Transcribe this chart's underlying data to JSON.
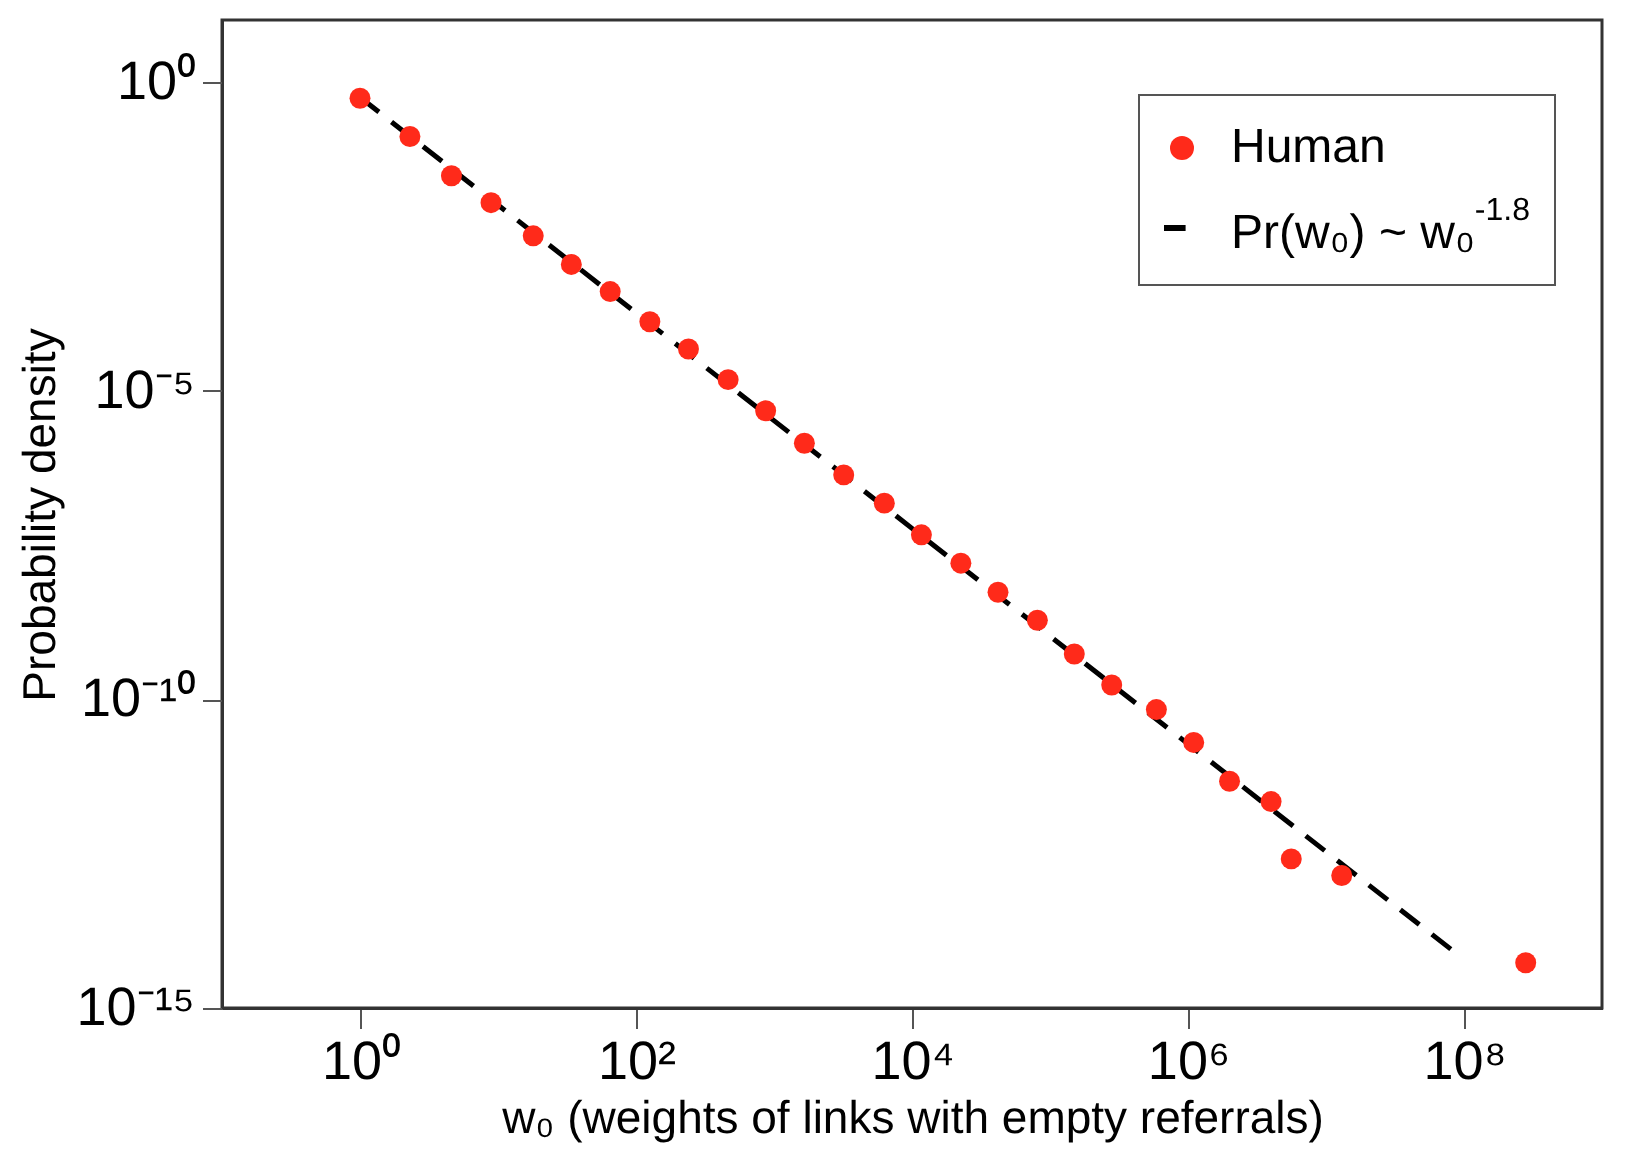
{
  "chart_data": {
    "type": "scatter",
    "xlabel": "w₀ (weights of links with empty referrals)",
    "ylabel": "Probability density",
    "log": "xy",
    "grid": false,
    "legend": "top right",
    "xlim": [
      0.1,
      1000000000.0
    ],
    "ylim": [
      1e-15,
      10
    ],
    "xticks": [
      {
        "value": 1,
        "label": "10⁰"
      },
      {
        "value": 100,
        "label": "10²"
      },
      {
        "value": 10000,
        "label": "10⁴"
      },
      {
        "value": 1000000,
        "label": "10⁶"
      },
      {
        "value": 100000000,
        "label": "10⁸"
      }
    ],
    "yticks": [
      {
        "value": 1,
        "label": "10⁰"
      },
      {
        "value": 1e-05,
        "label": "10⁻⁵"
      },
      {
        "value": 1e-10,
        "label": "10⁻¹⁰"
      },
      {
        "value": 1e-15,
        "label": "10⁻¹⁵"
      }
    ],
    "series": [
      {
        "name": "Human",
        "marker": "circle",
        "color": "#ff2a1a",
        "x": [
          1,
          2.3,
          4.6,
          8.9,
          18,
          34,
          65,
          126,
          240,
          465,
          870,
          1660,
          3200,
          6300,
          11700,
          22600,
          42000,
          81000,
          150000,
          280000,
          590000,
          1100000,
          2000000,
          4000000,
          5600000,
          13000000,
          280000000
        ],
        "values": [
          0.54,
          0.13,
          0.03,
          0.011,
          0.0032,
          0.0011,
          0.0004,
          0.00013,
          4.7e-05,
          1.5e-05,
          4.7e-06,
          1.4e-06,
          4.3e-07,
          1.5e-07,
          4.6e-08,
          1.6e-08,
          5.4e-09,
          1.9e-09,
          5.4e-10,
          1.7e-10,
          6.8e-11,
          2e-11,
          4.7e-12,
          2.2e-12,
          2.6e-13,
          1.4e-13,
          5.4e-15
        ]
      },
      {
        "name": "Pr(w₀) ~ w₀$^{-1.8}$",
        "type": "line",
        "line_style": "dashed",
        "color": "#000000",
        "x": [
          1,
          87000000
        ],
        "values": [
          0.56,
          7.8e-15
        ]
      }
    ]
  }
}
